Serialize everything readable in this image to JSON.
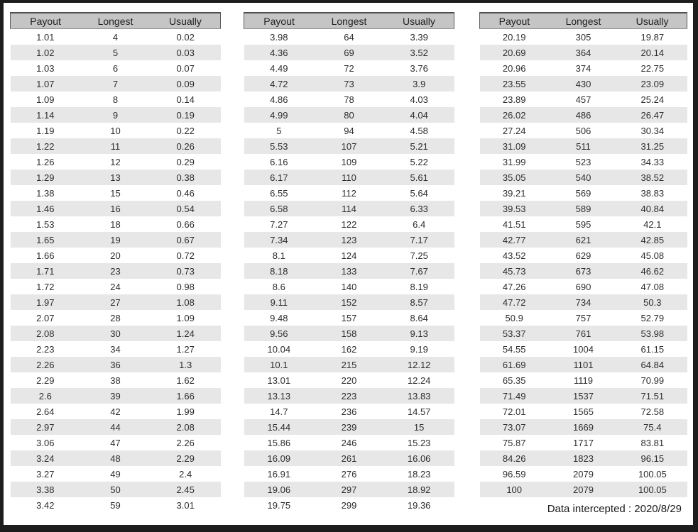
{
  "footer": {
    "note": "Data intercepted : 2020/8/29"
  },
  "chart_data": [
    {
      "type": "table",
      "columns": [
        "Payout",
        "Longest",
        "Usually"
      ],
      "rows": [
        [
          "1.01",
          "4",
          "0.02"
        ],
        [
          "1.02",
          "5",
          "0.03"
        ],
        [
          "1.03",
          "6",
          "0.07"
        ],
        [
          "1.07",
          "7",
          "0.09"
        ],
        [
          "1.09",
          "8",
          "0.14"
        ],
        [
          "1.14",
          "9",
          "0.19"
        ],
        [
          "1.19",
          "10",
          "0.22"
        ],
        [
          "1.22",
          "11",
          "0.26"
        ],
        [
          "1.26",
          "12",
          "0.29"
        ],
        [
          "1.29",
          "13",
          "0.38"
        ],
        [
          "1.38",
          "15",
          "0.46"
        ],
        [
          "1.46",
          "16",
          "0.54"
        ],
        [
          "1.53",
          "18",
          "0.66"
        ],
        [
          "1.65",
          "19",
          "0.67"
        ],
        [
          "1.66",
          "20",
          "0.72"
        ],
        [
          "1.71",
          "23",
          "0.73"
        ],
        [
          "1.72",
          "24",
          "0.98"
        ],
        [
          "1.97",
          "27",
          "1.08"
        ],
        [
          "2.07",
          "28",
          "1.09"
        ],
        [
          "2.08",
          "30",
          "1.24"
        ],
        [
          "2.23",
          "34",
          "1.27"
        ],
        [
          "2.26",
          "36",
          "1.3"
        ],
        [
          "2.29",
          "38",
          "1.62"
        ],
        [
          "2.6",
          "39",
          "1.66"
        ],
        [
          "2.64",
          "42",
          "1.99"
        ],
        [
          "2.97",
          "44",
          "2.08"
        ],
        [
          "3.06",
          "47",
          "2.26"
        ],
        [
          "3.24",
          "48",
          "2.29"
        ],
        [
          "3.27",
          "49",
          "2.4"
        ],
        [
          "3.38",
          "50",
          "2.45"
        ],
        [
          "3.42",
          "59",
          "3.01"
        ]
      ]
    },
    {
      "type": "table",
      "columns": [
        "Payout",
        "Longest",
        "Usually"
      ],
      "rows": [
        [
          "3.98",
          "64",
          "3.39"
        ],
        [
          "4.36",
          "69",
          "3.52"
        ],
        [
          "4.49",
          "72",
          "3.76"
        ],
        [
          "4.72",
          "73",
          "3.9"
        ],
        [
          "4.86",
          "78",
          "4.03"
        ],
        [
          "4.99",
          "80",
          "4.04"
        ],
        [
          "5",
          "94",
          "4.58"
        ],
        [
          "5.53",
          "107",
          "5.21"
        ],
        [
          "6.16",
          "109",
          "5.22"
        ],
        [
          "6.17",
          "110",
          "5.61"
        ],
        [
          "6.55",
          "112",
          "5.64"
        ],
        [
          "6.58",
          "114",
          "6.33"
        ],
        [
          "7.27",
          "122",
          "6.4"
        ],
        [
          "7.34",
          "123",
          "7.17"
        ],
        [
          "8.1",
          "124",
          "7.25"
        ],
        [
          "8.18",
          "133",
          "7.67"
        ],
        [
          "8.6",
          "140",
          "8.19"
        ],
        [
          "9.11",
          "152",
          "8.57"
        ],
        [
          "9.48",
          "157",
          "8.64"
        ],
        [
          "9.56",
          "158",
          "9.13"
        ],
        [
          "10.04",
          "162",
          "9.19"
        ],
        [
          "10.1",
          "215",
          "12.12"
        ],
        [
          "13.01",
          "220",
          "12.24"
        ],
        [
          "13.13",
          "223",
          "13.83"
        ],
        [
          "14.7",
          "236",
          "14.57"
        ],
        [
          "15.44",
          "239",
          "15"
        ],
        [
          "15.86",
          "246",
          "15.23"
        ],
        [
          "16.09",
          "261",
          "16.06"
        ],
        [
          "16.91",
          "276",
          "18.23"
        ],
        [
          "19.06",
          "297",
          "18.92"
        ],
        [
          "19.75",
          "299",
          "19.36"
        ]
      ]
    },
    {
      "type": "table",
      "columns": [
        "Payout",
        "Longest",
        "Usually"
      ],
      "rows": [
        [
          "20.19",
          "305",
          "19.87"
        ],
        [
          "20.69",
          "364",
          "20.14"
        ],
        [
          "20.96",
          "374",
          "22.75"
        ],
        [
          "23.55",
          "430",
          "23.09"
        ],
        [
          "23.89",
          "457",
          "25.24"
        ],
        [
          "26.02",
          "486",
          "26.47"
        ],
        [
          "27.24",
          "506",
          "30.34"
        ],
        [
          "31.09",
          "511",
          "31.25"
        ],
        [
          "31.99",
          "523",
          "34.33"
        ],
        [
          "35.05",
          "540",
          "38.52"
        ],
        [
          "39.21",
          "569",
          "38.83"
        ],
        [
          "39.53",
          "589",
          "40.84"
        ],
        [
          "41.51",
          "595",
          "42.1"
        ],
        [
          "42.77",
          "621",
          "42.85"
        ],
        [
          "43.52",
          "629",
          "45.08"
        ],
        [
          "45.73",
          "673",
          "46.62"
        ],
        [
          "47.26",
          "690",
          "47.08"
        ],
        [
          "47.72",
          "734",
          "50.3"
        ],
        [
          "50.9",
          "757",
          "52.79"
        ],
        [
          "53.37",
          "761",
          "53.98"
        ],
        [
          "54.55",
          "1004",
          "61.15"
        ],
        [
          "61.69",
          "1101",
          "64.84"
        ],
        [
          "65.35",
          "1119",
          "70.99"
        ],
        [
          "71.49",
          "1537",
          "71.51"
        ],
        [
          "72.01",
          "1565",
          "72.58"
        ],
        [
          "73.07",
          "1669",
          "75.4"
        ],
        [
          "75.87",
          "1717",
          "83.81"
        ],
        [
          "84.26",
          "1823",
          "96.15"
        ],
        [
          "96.59",
          "2079",
          "100.05"
        ],
        [
          "100",
          "2079",
          "100.05"
        ]
      ]
    }
  ],
  "colors": {
    "frame": "#1d1d1d",
    "header_bg": "#c5c5c5",
    "stripe_bg": "#e7e7e7",
    "text": "#2d2d2d"
  }
}
